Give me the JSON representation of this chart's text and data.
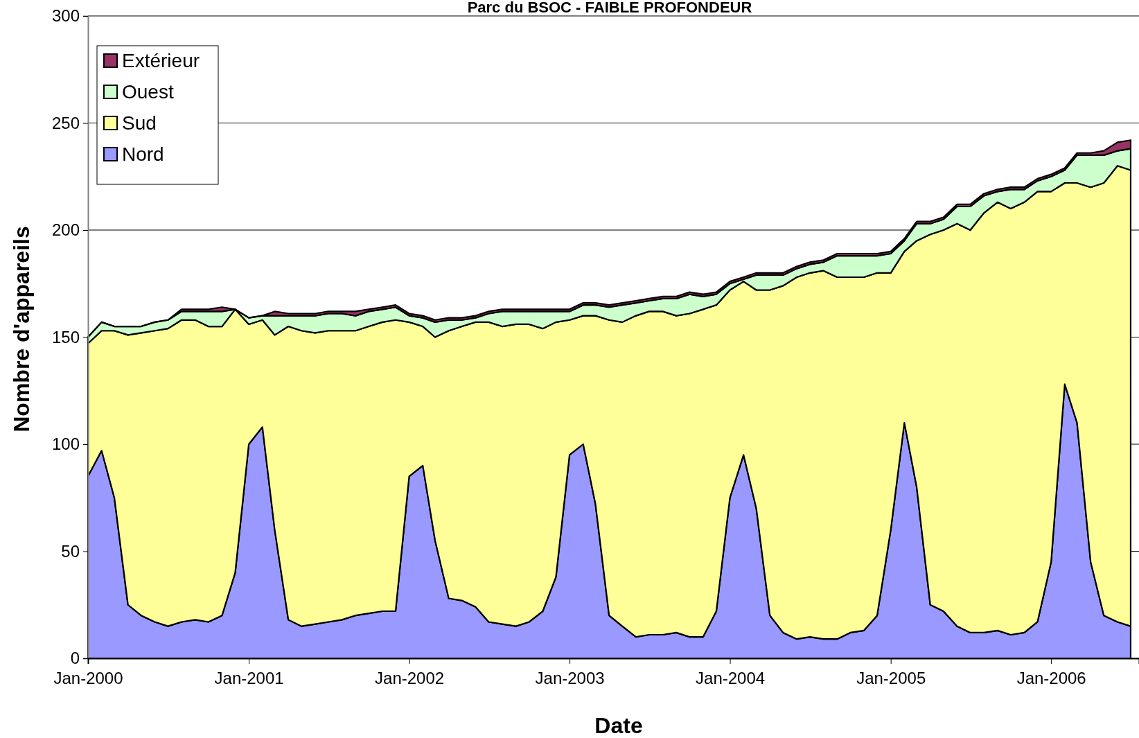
{
  "chart_data": {
    "type": "area",
    "stacked": true,
    "title": "Parc du BSOC - FAIBLE PROFONDEUR",
    "xlabel": "Date",
    "ylabel": "Nombre d'appareils",
    "x": [
      "2000-01",
      "2000-02",
      "2000-03",
      "2000-04",
      "2000-05",
      "2000-06",
      "2000-07",
      "2000-08",
      "2000-09",
      "2000-10",
      "2000-11",
      "2000-12",
      "2001-01",
      "2001-02",
      "2001-03",
      "2001-04",
      "2001-05",
      "2001-06",
      "2001-07",
      "2001-08",
      "2001-09",
      "2001-10",
      "2001-11",
      "2001-12",
      "2002-01",
      "2002-02",
      "2002-03",
      "2002-04",
      "2002-05",
      "2002-06",
      "2002-07",
      "2002-08",
      "2002-09",
      "2002-10",
      "2002-11",
      "2002-12",
      "2003-01",
      "2003-02",
      "2003-03",
      "2003-04",
      "2003-05",
      "2003-06",
      "2003-07",
      "2003-08",
      "2003-09",
      "2003-10",
      "2003-11",
      "2003-12",
      "2004-01",
      "2004-02",
      "2004-03",
      "2004-04",
      "2004-05",
      "2004-06",
      "2004-07",
      "2004-08",
      "2004-09",
      "2004-10",
      "2004-11",
      "2004-12",
      "2005-01",
      "2005-02",
      "2005-03",
      "2005-04",
      "2005-05",
      "2005-06",
      "2005-07",
      "2005-08",
      "2005-09",
      "2005-10",
      "2005-11",
      "2005-12",
      "2006-01",
      "2006-02",
      "2006-03",
      "2006-04",
      "2006-05",
      "2006-06",
      "2006-07"
    ],
    "series": [
      {
        "name": "Nord",
        "color": "#9999ff",
        "values": [
          85,
          97,
          75,
          25,
          20,
          17,
          15,
          17,
          18,
          17,
          20,
          40,
          100,
          108,
          60,
          18,
          15,
          16,
          17,
          18,
          20,
          21,
          22,
          22,
          85,
          90,
          55,
          28,
          27,
          24,
          17,
          16,
          15,
          17,
          22,
          38,
          95,
          100,
          72,
          20,
          15,
          10,
          11,
          11,
          12,
          10,
          10,
          22,
          75,
          95,
          70,
          20,
          12,
          9,
          10,
          9,
          9,
          12,
          13,
          20,
          60,
          110,
          80,
          25,
          22,
          15,
          12,
          12,
          13,
          11,
          12,
          17,
          45,
          128,
          110,
          45,
          20,
          17,
          15
        ]
      },
      {
        "name": "Sud",
        "color": "#ffff99",
        "values": [
          62,
          56,
          78,
          126,
          132,
          136,
          139,
          141,
          140,
          138,
          135,
          123,
          56,
          50,
          91,
          137,
          138,
          136,
          136,
          135,
          133,
          134,
          135,
          136,
          72,
          65,
          95,
          125,
          128,
          133,
          140,
          139,
          141,
          139,
          132,
          119,
          63,
          60,
          88,
          138,
          142,
          150,
          151,
          151,
          148,
          151,
          153,
          143,
          97,
          81,
          102,
          152,
          162,
          169,
          170,
          172,
          169,
          166,
          165,
          160,
          120,
          80,
          115,
          173,
          178,
          188,
          188,
          196,
          200,
          199,
          201,
          201,
          173,
          94,
          112,
          175,
          202,
          213,
          213
        ]
      },
      {
        "name": "Ouest",
        "color": "#ccffcc",
        "values": [
          3,
          4,
          2,
          4,
          3,
          4,
          4,
          4,
          4,
          7,
          7,
          0,
          3,
          2,
          9,
          5,
          7,
          8,
          8,
          8,
          7,
          7,
          6,
          6,
          3,
          4,
          7,
          5,
          3,
          2,
          4,
          7,
          6,
          6,
          8,
          5,
          4,
          5,
          5,
          6,
          8,
          6,
          5,
          6,
          8,
          9,
          6,
          5,
          3,
          1,
          7,
          7,
          5,
          4,
          4,
          4,
          10,
          10,
          10,
          8,
          9,
          5,
          8,
          5,
          5,
          8,
          11,
          8,
          5,
          9,
          6,
          5,
          7,
          6,
          13,
          15,
          13,
          7,
          10
        ]
      },
      {
        "name": "Extérieur",
        "color": "#993366",
        "values": [
          0,
          0,
          0,
          0,
          0,
          0,
          0,
          1,
          1,
          1,
          2,
          0,
          0,
          0,
          2,
          1,
          1,
          1,
          1,
          1,
          2,
          1,
          1,
          1,
          1,
          1,
          1,
          1,
          1,
          1,
          1,
          1,
          1,
          1,
          1,
          1,
          1,
          1,
          1,
          1,
          1,
          1,
          1,
          1,
          1,
          1,
          1,
          1,
          1,
          1,
          1,
          1,
          1,
          1,
          1,
          1,
          1,
          1,
          1,
          1,
          1,
          1,
          1,
          1,
          1,
          1,
          1,
          1,
          1,
          1,
          1,
          1,
          1,
          1,
          1,
          1,
          2,
          4,
          4
        ]
      }
    ],
    "xlim": [
      "2000-01-01",
      "2006-07-20"
    ],
    "xticks": [
      {
        "value": "2000-01",
        "label": "Jan-2000"
      },
      {
        "value": "2001-01",
        "label": "Jan-2001"
      },
      {
        "value": "2002-01",
        "label": "Jan-2002"
      },
      {
        "value": "2003-01",
        "label": "Jan-2003"
      },
      {
        "value": "2004-01",
        "label": "Jan-2004"
      },
      {
        "value": "2005-01",
        "label": "Jan-2005"
      },
      {
        "value": "2006-01",
        "label": "Jan-2006"
      }
    ],
    "ylim": [
      0,
      300
    ],
    "yticks": [
      0,
      50,
      100,
      150,
      200,
      250,
      300
    ],
    "grid": "y",
    "legend": "top left"
  }
}
